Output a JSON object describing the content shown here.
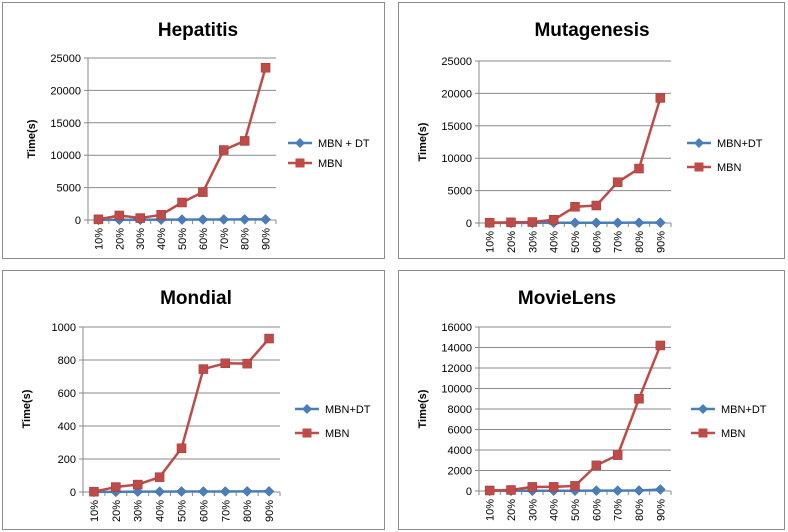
{
  "chart_data": [
    {
      "type": "line",
      "title": "Hepatitis",
      "ylabel": "Time(s)",
      "xlabel": "",
      "categories": [
        "10%",
        "20%",
        "30%",
        "40%",
        "50%",
        "60%",
        "70%",
        "80%",
        "90%"
      ],
      "ylim": [
        0,
        25000
      ],
      "yticks": [
        0,
        5000,
        10000,
        15000,
        20000,
        25000
      ],
      "grid": true,
      "legend": "right",
      "series": [
        {
          "name": "MBN + DT",
          "color": "#4a7ebb",
          "marker": "diamond",
          "values": [
            20,
            30,
            40,
            50,
            60,
            70,
            80,
            90,
            100
          ]
        },
        {
          "name": "MBN",
          "color": "#be4b48",
          "marker": "square",
          "values": [
            100,
            700,
            300,
            800,
            2700,
            4300,
            10800,
            12200,
            23500
          ]
        }
      ]
    },
    {
      "type": "line",
      "title": "Mutagenesis",
      "ylabel": "Time(s)",
      "xlabel": "",
      "categories": [
        "10%",
        "20%",
        "30%",
        "40%",
        "50%",
        "60%",
        "70%",
        "80%",
        "90%"
      ],
      "ylim": [
        0,
        25000
      ],
      "yticks": [
        0,
        5000,
        10000,
        15000,
        20000,
        25000
      ],
      "grid": true,
      "legend": "right",
      "series": [
        {
          "name": "MBN+DT",
          "color": "#4a7ebb",
          "marker": "diamond",
          "values": [
            10,
            20,
            20,
            30,
            30,
            40,
            40,
            50,
            60
          ]
        },
        {
          "name": "MBN",
          "color": "#be4b48",
          "marker": "square",
          "values": [
            50,
            100,
            150,
            500,
            2500,
            2700,
            6300,
            8400,
            19300
          ]
        }
      ]
    },
    {
      "type": "line",
      "title": "Mondial",
      "ylabel": "Time(s)",
      "xlabel": "",
      "categories": [
        "10%",
        "20%",
        "30%",
        "40%",
        "50%",
        "60%",
        "70%",
        "80%",
        "90%"
      ],
      "ylim": [
        0,
        1000
      ],
      "yticks": [
        0,
        200,
        400,
        600,
        800,
        1000
      ],
      "grid": true,
      "legend": "right",
      "series": [
        {
          "name": "MBN+DT",
          "color": "#4a7ebb",
          "marker": "diamond",
          "values": [
            1,
            1,
            2,
            2,
            3,
            3,
            3,
            4,
            4
          ]
        },
        {
          "name": "MBN",
          "color": "#be4b48",
          "marker": "square",
          "values": [
            2,
            30,
            45,
            90,
            265,
            745,
            780,
            778,
            930
          ]
        }
      ]
    },
    {
      "type": "line",
      "title": "MovieLens",
      "ylabel": "Time(s)",
      "xlabel": "",
      "categories": [
        "10%",
        "20%",
        "30%",
        "40%",
        "50%",
        "60%",
        "70%",
        "80%",
        "90%"
      ],
      "ylim": [
        0,
        16000
      ],
      "yticks": [
        0,
        2000,
        4000,
        6000,
        8000,
        10000,
        12000,
        14000,
        16000
      ],
      "grid": true,
      "legend": "right",
      "series": [
        {
          "name": "MBN+DT",
          "color": "#4a7ebb",
          "marker": "diamond",
          "values": [
            10,
            20,
            20,
            30,
            30,
            40,
            40,
            50,
            150
          ]
        },
        {
          "name": "MBN",
          "color": "#be4b48",
          "marker": "square",
          "values": [
            50,
            100,
            400,
            400,
            500,
            2500,
            3500,
            9000,
            14200
          ]
        }
      ]
    }
  ]
}
